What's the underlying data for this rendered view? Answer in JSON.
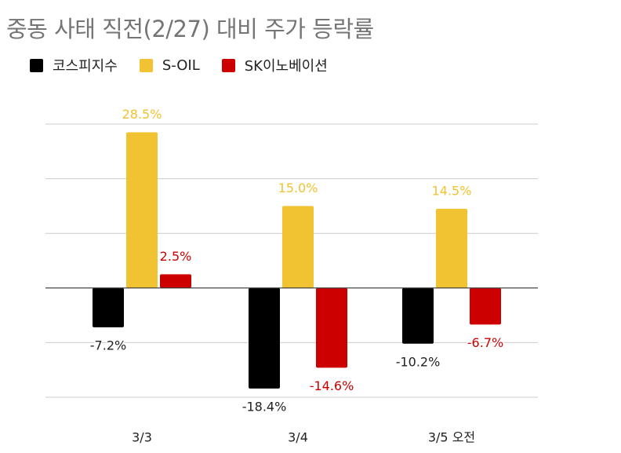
{
  "chart_data": {
    "type": "bar",
    "title": "중동 사태 직전(2/27) 대비 주가 등락률",
    "categories": [
      "3/3",
      "3/4",
      "3/5 오전"
    ],
    "series": [
      {
        "name": "코스피지수",
        "color": "#000000",
        "values": [
          -7.2,
          -18.4,
          -10.2
        ],
        "labels": [
          "-7.2%",
          "-18.4%",
          "-10.2%"
        ],
        "label_color": "#222222"
      },
      {
        "name": "S-OIL",
        "color": "#f1c232",
        "values": [
          28.5,
          15.0,
          14.5
        ],
        "labels": [
          "28.5%",
          "15.0%",
          "14.5%"
        ],
        "label_color": "#f1c232"
      },
      {
        "name": "SK이노베이션",
        "color": "#cc0000",
        "values": [
          2.5,
          -14.6,
          -6.7
        ],
        "labels": [
          "2.5%",
          "-14.6%",
          "-6.7%"
        ],
        "label_color": "#cc0000"
      }
    ],
    "ylim": [
      -20,
      30
    ],
    "grid": true,
    "legend_position": "top-left",
    "xlabel": "",
    "ylabel": ""
  }
}
